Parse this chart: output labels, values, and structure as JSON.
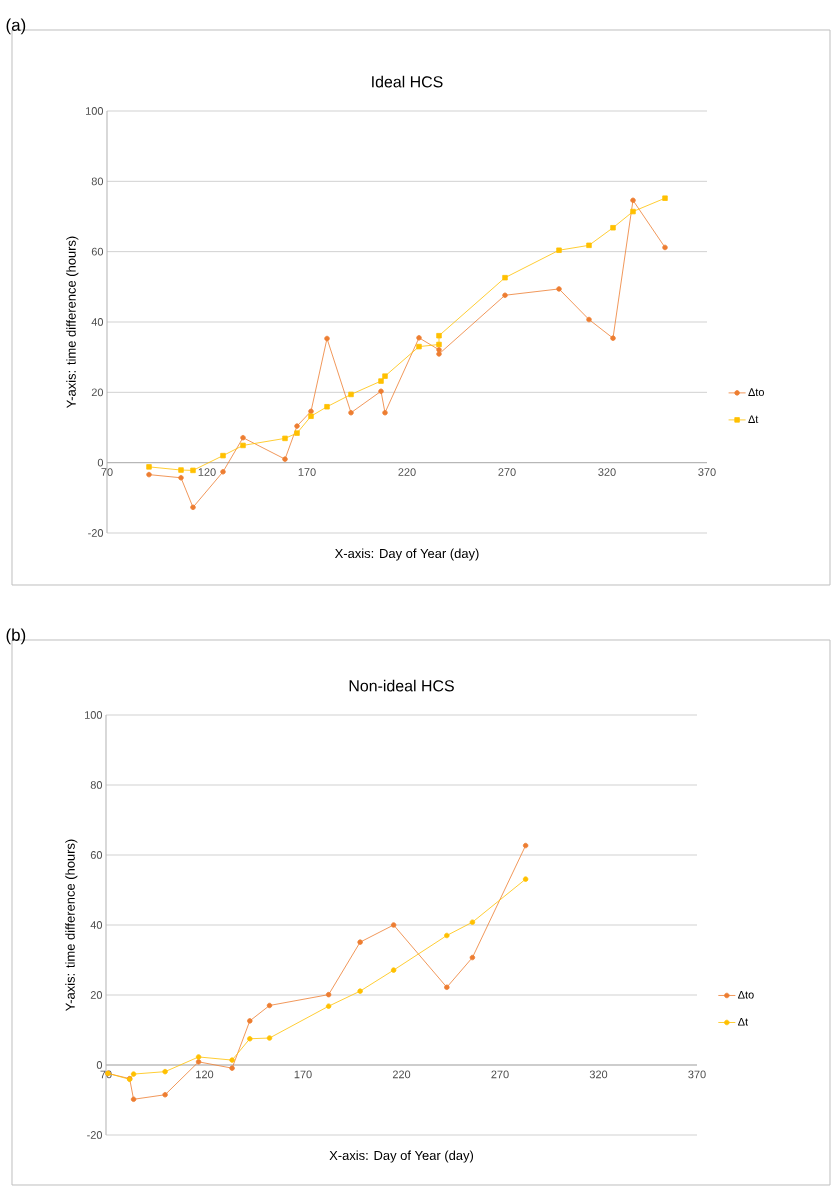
{
  "chart_data": [
    {
      "type": "line",
      "title": "Ideal HCS",
      "xlabel": "X-axis: Day of Year (day)",
      "ylabel": "Y-axis: time difference (hours)",
      "annotations": [
        "(a)"
      ],
      "xlim": [
        70,
        370
      ],
      "ylim": [
        -20,
        100
      ],
      "xticks": [
        70,
        120,
        170,
        220,
        270,
        320,
        370
      ],
      "yticks": [
        -20,
        0,
        20,
        40,
        60,
        80,
        100
      ],
      "grid": "y",
      "legend": "right",
      "series": [
        {
          "name": "Δto",
          "color": "#ed7d31",
          "marker": "circle",
          "x": [
            91,
            107,
            113,
            128,
            138,
            159,
            165,
            172,
            180,
            192,
            207,
            209,
            226,
            236,
            236,
            269,
            296,
            311,
            323,
            333,
            349
          ],
          "values": [
            -3.4,
            -4.3,
            -12.7,
            -2.6,
            7.1,
            1.0,
            10.4,
            14.6,
            35.3,
            14.2,
            20.3,
            14.2,
            35.5,
            32.1,
            30.9,
            47.6,
            49.4,
            40.7,
            35.4,
            74.6,
            61.2
          ]
        },
        {
          "name": "Δt",
          "color": "#ffc000",
          "marker": "square",
          "x": [
            91,
            107,
            113,
            128,
            138,
            159,
            165,
            172,
            180,
            192,
            207,
            209,
            226,
            236,
            236,
            269,
            296,
            311,
            323,
            333,
            349
          ],
          "values": [
            -1.2,
            -2.1,
            -2.2,
            2.0,
            4.9,
            6.9,
            8.4,
            13.2,
            15.9,
            19.4,
            23.2,
            24.6,
            33.0,
            33.6,
            36.1,
            52.6,
            60.4,
            61.8,
            66.8,
            71.4,
            75.2
          ]
        }
      ]
    },
    {
      "type": "line",
      "title": "Non-ideal HCS",
      "xlabel": "X-axis: Day of Year (day)",
      "ylabel": "Y-axis: time difference (hours)",
      "annotations": [
        "(b)"
      ],
      "xlim": [
        70,
        370
      ],
      "ylim": [
        -20,
        100
      ],
      "xticks": [
        70,
        120,
        170,
        220,
        270,
        320,
        370
      ],
      "yticks": [
        -20,
        0,
        20,
        40,
        60,
        80,
        100
      ],
      "grid": "y",
      "legend": "right",
      "series": [
        {
          "name": "Δto",
          "color": "#ed7d31",
          "marker": "circle",
          "x": [
            71,
            82,
            84,
            100,
            117,
            134,
            143,
            153,
            183,
            199,
            216,
            243,
            256,
            283
          ],
          "values": [
            -2.4,
            -3.9,
            -9.8,
            -8.5,
            0.9,
            -0.9,
            12.6,
            17.0,
            20.1,
            35.1,
            40.0,
            22.2,
            30.7,
            62.7
          ]
        },
        {
          "name": "Δt",
          "color": "#ffc000",
          "marker": "circle",
          "x": [
            71,
            82,
            84,
            100,
            117,
            134,
            143,
            153,
            183,
            199,
            216,
            243,
            256,
            283
          ],
          "values": [
            -2.4,
            -4.1,
            -2.6,
            -1.9,
            2.3,
            1.4,
            7.5,
            7.7,
            16.8,
            21.1,
            27.1,
            37.0,
            40.8,
            53.1
          ]
        }
      ]
    }
  ]
}
